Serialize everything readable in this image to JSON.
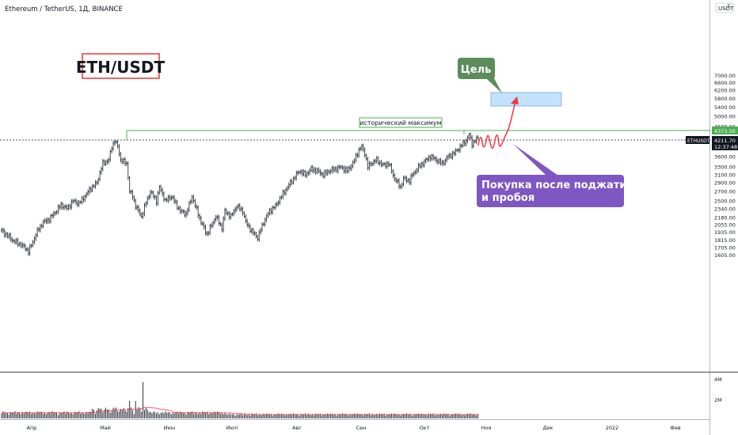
{
  "header": {
    "title": "Ethereum / TetherUS, 1Д, BINANCE",
    "currency_label": "USDT"
  },
  "chart_data": {
    "type": "candlestick",
    "symbol_box": "ETH/USDT",
    "y_axis": {
      "scale": "log",
      "range": [
        1550,
        7300
      ],
      "ticks": [
        "7000.00",
        "6600.00",
        "6200.00",
        "5800.00",
        "5400.00",
        "5000.00",
        "4600.00",
        "3900.00",
        "3600.00",
        "3300.00",
        "3100.00",
        "2900.00",
        "2700.00",
        "2500.00",
        "2340.00",
        "2180.00",
        "2055.00",
        "1935.00",
        "1815.00",
        "1705.00",
        "1605.00"
      ]
    },
    "x_axis": {
      "ticks": [
        "Апр",
        "Май",
        "Июн",
        "Июл",
        "Авг",
        "Сен",
        "Окт",
        "Ноя",
        "Дек",
        "2022",
        "Фев"
      ]
    },
    "volume_axis_ticks": [
      "4M",
      "2M"
    ],
    "price_tags": {
      "ath_level": "4373.56",
      "current_symbol": "ETHUSDT",
      "current_price": "4211.70",
      "countdown": "12:37:48",
      "ath_color": "#4caf50",
      "current_color": "#131722"
    },
    "annotations": {
      "ath_label": "исторический максимум",
      "target_label": "Цель",
      "target_color": "#5b8c5a",
      "target_zone_low": 4850,
      "target_zone_high": 5150,
      "buy_label_line1": "Покупка после поджатия",
      "buy_label_line2": "и пробоя",
      "buy_color": "#7e57c2",
      "path_color": "#f23645"
    },
    "anchors": [
      [
        0,
        1960
      ],
      [
        4,
        1880
      ],
      [
        8,
        1800
      ],
      [
        12,
        1760
      ],
      [
        16,
        1700
      ],
      [
        18,
        1650
      ],
      [
        20,
        1740
      ],
      [
        24,
        1950
      ],
      [
        28,
        2100
      ],
      [
        32,
        2150
      ],
      [
        36,
        2280
      ],
      [
        40,
        2420
      ],
      [
        44,
        2350
      ],
      [
        48,
        2500
      ],
      [
        52,
        2450
      ],
      [
        56,
        2600
      ],
      [
        60,
        2780
      ],
      [
        64,
        2900
      ],
      [
        68,
        3400
      ],
      [
        72,
        3500
      ],
      [
        74,
        3900
      ],
      [
        76,
        4100
      ],
      [
        78,
        3900
      ],
      [
        80,
        3500
      ],
      [
        84,
        3400
      ],
      [
        86,
        2700
      ],
      [
        88,
        2600
      ],
      [
        90,
        2400
      ],
      [
        94,
        2200
      ],
      [
        98,
        2550
      ],
      [
        100,
        2700
      ],
      [
        104,
        2500
      ],
      [
        106,
        2800
      ],
      [
        110,
        2500
      ],
      [
        114,
        2600
      ],
      [
        118,
        2400
      ],
      [
        120,
        2300
      ],
      [
        124,
        2250
      ],
      [
        128,
        2600
      ],
      [
        130,
        2400
      ],
      [
        134,
        2100
      ],
      [
        136,
        2000
      ],
      [
        138,
        1900
      ],
      [
        142,
        2100
      ],
      [
        144,
        2200
      ],
      [
        148,
        2000
      ],
      [
        150,
        2300
      ],
      [
        154,
        2200
      ],
      [
        158,
        2400
      ],
      [
        162,
        2300
      ],
      [
        164,
        2100
      ],
      [
        168,
        1950
      ],
      [
        170,
        1900
      ],
      [
        172,
        1850
      ],
      [
        176,
        2100
      ],
      [
        180,
        2300
      ],
      [
        184,
        2400
      ],
      [
        188,
        2600
      ],
      [
        192,
        2800
      ],
      [
        196,
        3000
      ],
      [
        200,
        3200
      ],
      [
        204,
        3100
      ],
      [
        208,
        3250
      ],
      [
        212,
        3200
      ],
      [
        216,
        3100
      ],
      [
        220,
        3200
      ],
      [
        224,
        3250
      ],
      [
        228,
        3300
      ],
      [
        232,
        3200
      ],
      [
        236,
        3400
      ],
      [
        240,
        3800
      ],
      [
        242,
        3900
      ],
      [
        244,
        3700
      ],
      [
        246,
        3300
      ],
      [
        248,
        3400
      ],
      [
        252,
        3500
      ],
      [
        256,
        3350
      ],
      [
        260,
        3400
      ],
      [
        262,
        3200
      ],
      [
        264,
        3000
      ],
      [
        266,
        2900
      ],
      [
        268,
        2800
      ],
      [
        270,
        3000
      ],
      [
        274,
        2950
      ],
      [
        276,
        3100
      ],
      [
        280,
        3300
      ],
      [
        284,
        3450
      ],
      [
        288,
        3600
      ],
      [
        292,
        3500
      ],
      [
        296,
        3400
      ],
      [
        300,
        3600
      ],
      [
        304,
        3700
      ],
      [
        308,
        3900
      ],
      [
        312,
        4100
      ],
      [
        314,
        4300
      ],
      [
        316,
        4000
      ],
      [
        318,
        4100
      ],
      [
        320,
        4200
      ]
    ]
  }
}
